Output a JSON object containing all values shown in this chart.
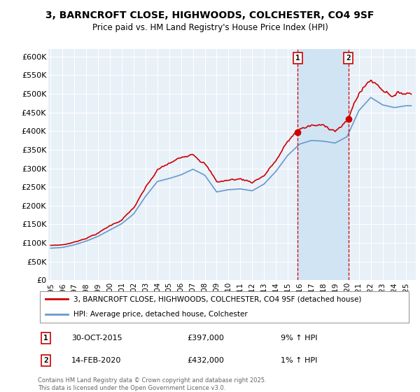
{
  "title": "3, BARNCROFT CLOSE, HIGHWOODS, COLCHESTER, CO4 9SF",
  "subtitle": "Price paid vs. HM Land Registry's House Price Index (HPI)",
  "ylim": [
    0,
    620000
  ],
  "yticks": [
    0,
    50000,
    100000,
    150000,
    200000,
    250000,
    300000,
    350000,
    400000,
    450000,
    500000,
    550000,
    600000
  ],
  "ytick_labels": [
    "£0",
    "£50K",
    "£100K",
    "£150K",
    "£200K",
    "£250K",
    "£300K",
    "£350K",
    "£400K",
    "£450K",
    "£500K",
    "£550K",
    "£600K"
  ],
  "xlim_start": 1994.8,
  "xlim_end": 2025.8,
  "line1_color": "#cc0000",
  "line2_color": "#6699cc",
  "vline_color": "#cc0000",
  "plot_bg_color": "#e8f0f8",
  "grid_color": "#ffffff",
  "shade_color": "#d0e4f4",
  "transaction1": {
    "year": 2015.83,
    "price": 397000,
    "label": "1",
    "date": "30-OCT-2015",
    "pct": "9% ↑ HPI"
  },
  "transaction2": {
    "year": 2020.12,
    "price": 432000,
    "label": "2",
    "date": "14-FEB-2020",
    "pct": "1% ↑ HPI"
  },
  "legend1_label": "3, BARNCROFT CLOSE, HIGHWOODS, COLCHESTER, CO4 9SF (detached house)",
  "legend2_label": "HPI: Average price, detached house, Colchester",
  "footer": "Contains HM Land Registry data © Crown copyright and database right 2025.\nThis data is licensed under the Open Government Licence v3.0."
}
